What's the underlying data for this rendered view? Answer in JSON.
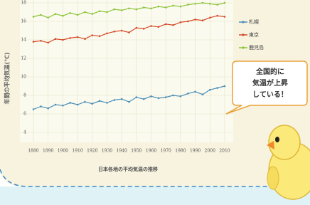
{
  "chart_data": {
    "type": "line",
    "title": "日本各地の平均気温の推移",
    "y_label": "年間の平均気温(℃)",
    "x": [
      1880,
      1885,
      1890,
      1895,
      1900,
      1905,
      1910,
      1915,
      1920,
      1925,
      1930,
      1935,
      1940,
      1945,
      1950,
      1955,
      1960,
      1965,
      1970,
      1975,
      1980,
      1985,
      1990,
      1995,
      2000,
      2005,
      2010
    ],
    "series": [
      {
        "name": "札幌",
        "color": "#4a8fb8",
        "values": [
          6.5,
          6.8,
          6.6,
          7.0,
          6.9,
          7.2,
          7.0,
          7.3,
          7.1,
          7.4,
          7.2,
          7.5,
          7.6,
          7.3,
          7.8,
          7.6,
          7.9,
          7.7,
          7.8,
          8.0,
          7.9,
          8.2,
          8.4,
          8.1,
          8.6,
          8.8,
          9.0
        ]
      },
      {
        "name": "東京",
        "color": "#d64a2a",
        "values": [
          13.8,
          13.9,
          13.7,
          14.1,
          14.0,
          14.2,
          14.3,
          14.1,
          14.5,
          14.4,
          14.7,
          14.9,
          15.0,
          14.8,
          15.3,
          15.2,
          15.5,
          15.4,
          15.7,
          15.6,
          15.9,
          16.0,
          16.2,
          16.1,
          16.4,
          16.6,
          16.5
        ]
      },
      {
        "name": "鹿児島",
        "color": "#8cc43a",
        "values": [
          16.5,
          16.7,
          16.4,
          16.8,
          16.6,
          16.9,
          16.7,
          17.0,
          16.8,
          17.1,
          17.0,
          17.3,
          17.2,
          17.4,
          17.3,
          17.5,
          17.4,
          17.6,
          17.5,
          17.7,
          17.6,
          17.8,
          17.9,
          18.0,
          17.9,
          17.8,
          18.0
        ]
      }
    ],
    "xlim": [
      1880,
      2010
    ],
    "xticks": [
      1880,
      1890,
      1900,
      1910,
      1920,
      1930,
      1940,
      1950,
      1960,
      1970,
      1980,
      1990,
      2000,
      2010
    ],
    "ylim": [
      4,
      18
    ],
    "yticks": [
      4,
      6,
      8,
      10,
      12,
      14,
      16,
      18
    ],
    "grid": true,
    "annotation": [
      "全国的に",
      "気温が上昇",
      "している！"
    ]
  }
}
